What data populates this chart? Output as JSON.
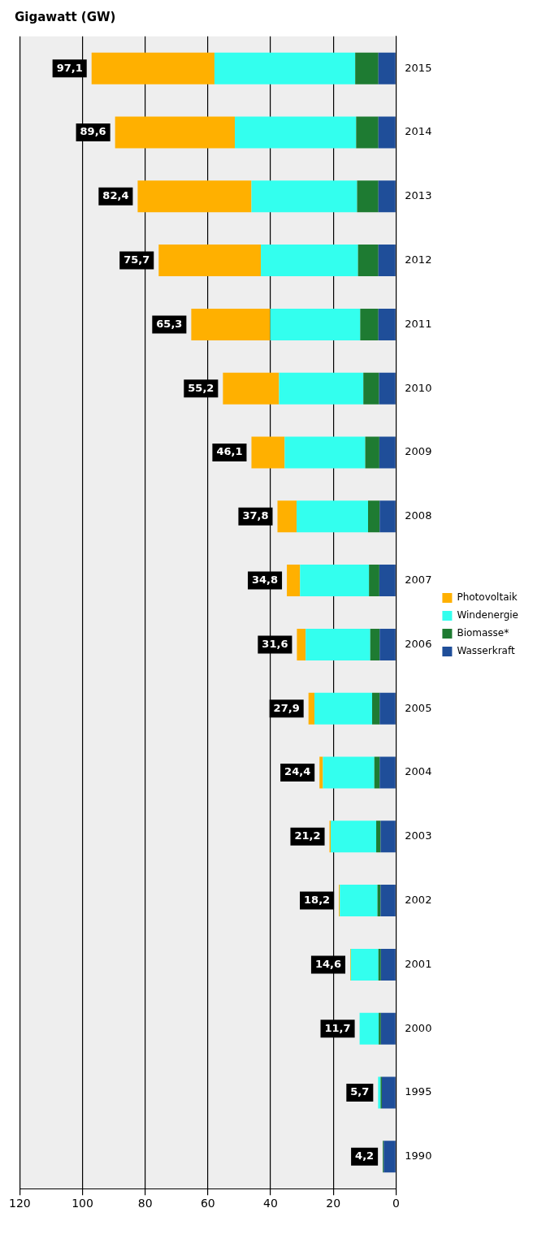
{
  "chart_data": {
    "type": "bar",
    "orientation": "horizontal",
    "stacked": true,
    "xlabel": "Gigawatt (GW)",
    "categories": [
      "2015",
      "2014",
      "2013",
      "2012",
      "2011",
      "2010",
      "2009",
      "2008",
      "2007",
      "2006",
      "2005",
      "2004",
      "2003",
      "2002",
      "2001",
      "2000",
      "1995",
      "1990"
    ],
    "series": [
      {
        "name": "Wasserkraft",
        "color": "#1f4e99",
        "values": [
          5.6,
          5.6,
          5.6,
          5.6,
          5.6,
          5.4,
          5.3,
          5.2,
          5.3,
          5.2,
          5.2,
          5.2,
          4.9,
          4.9,
          4.8,
          4.8,
          4.5,
          3.9
        ]
      },
      {
        "name": "Biomasse*",
        "color": "#1e7b32",
        "values": [
          7.4,
          7.1,
          6.8,
          6.5,
          5.8,
          5.0,
          4.5,
          3.7,
          3.3,
          3.0,
          2.4,
          1.7,
          1.4,
          1.0,
          0.8,
          0.7,
          0.4,
          0.3
        ]
      },
      {
        "name": "Windenergie",
        "color": "#33ffee",
        "values": [
          44.9,
          38.7,
          33.7,
          31.0,
          28.7,
          26.9,
          25.7,
          22.8,
          22.0,
          20.6,
          18.4,
          16.4,
          14.5,
          12.0,
          8.8,
          6.1,
          0.8,
          0
        ]
      },
      {
        "name": "Photovoltaik",
        "color": "#ffb000",
        "values": [
          39.2,
          38.2,
          36.3,
          32.6,
          25.2,
          17.9,
          10.6,
          6.1,
          4.2,
          2.8,
          1.9,
          1.1,
          0.4,
          0.3,
          0.2,
          null,
          0,
          0
        ]
      }
    ],
    "totals": [
      "97,1",
      "89,6",
      "82,4",
      "75,7",
      "65,3",
      "55,2",
      "46,1",
      "37,8",
      "34,8",
      "31,6",
      "27,9",
      "24,4",
      "21,2",
      "18,2",
      "14,6",
      "11,7",
      "5,7",
      "4,2"
    ],
    "xlim": [
      120,
      0
    ],
    "xticks": [
      120,
      100,
      80,
      60,
      40,
      20,
      0
    ],
    "grid": "x",
    "legend": "right"
  }
}
